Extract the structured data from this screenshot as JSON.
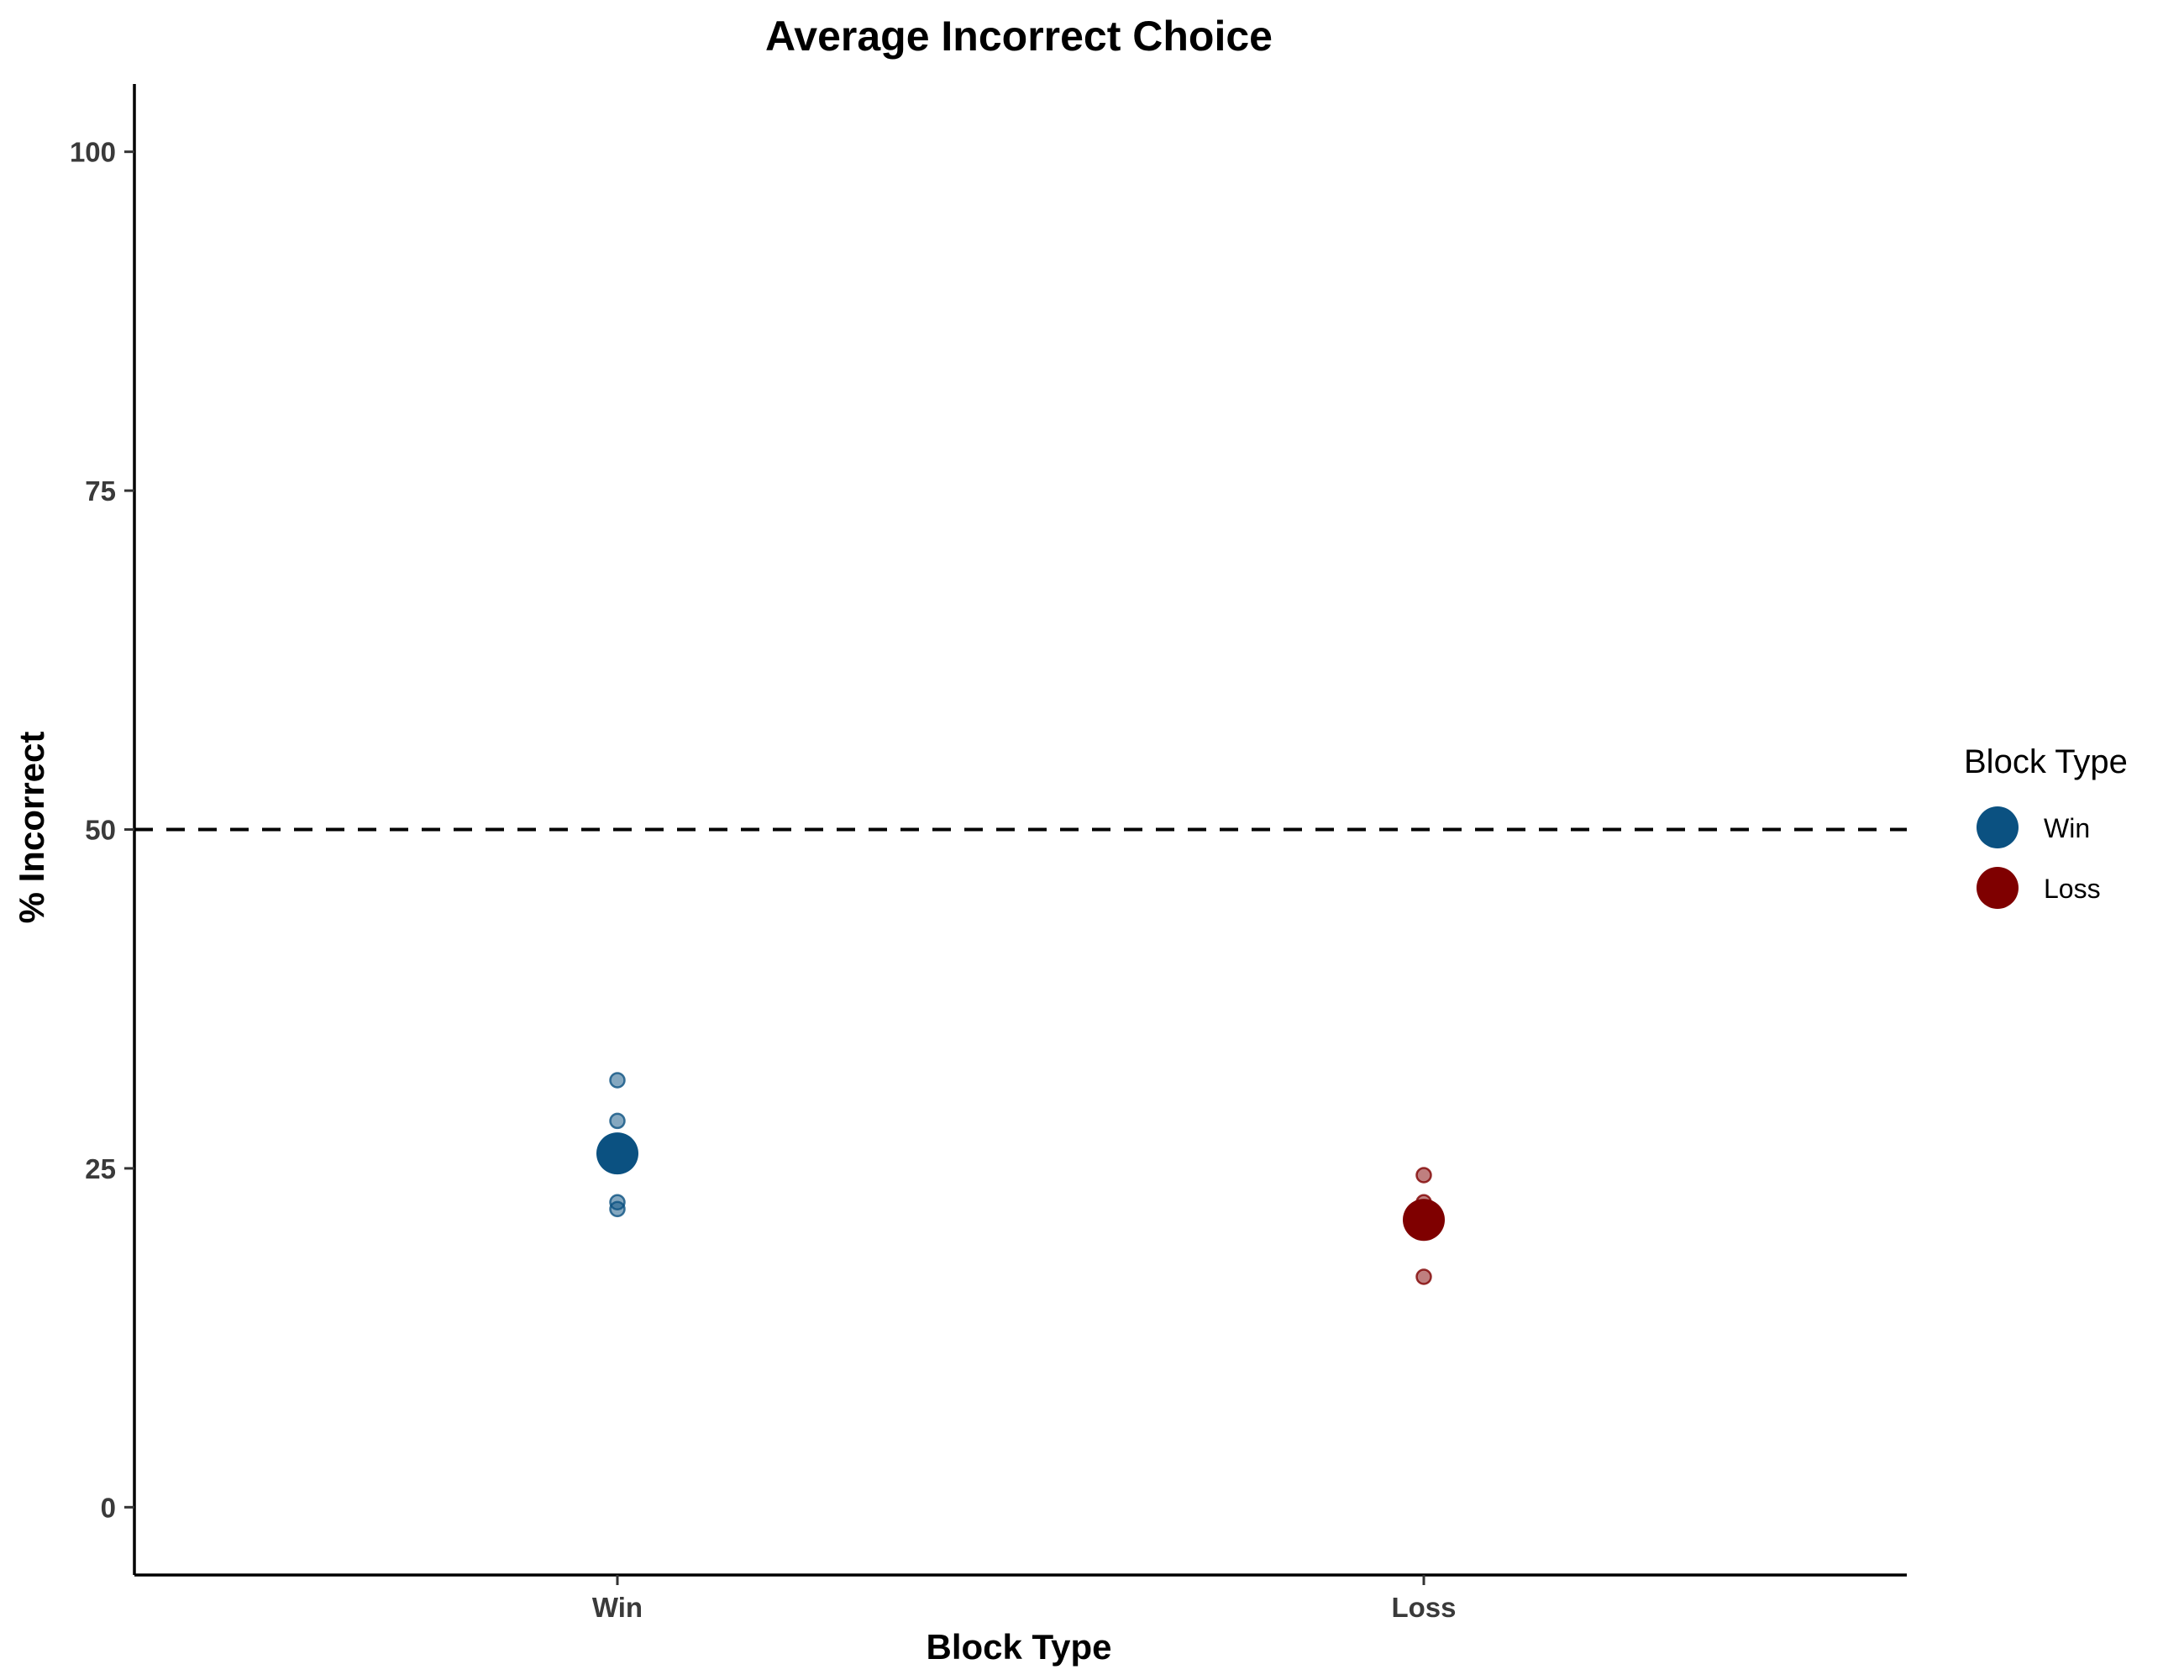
{
  "chart_data": {
    "type": "scatter",
    "title": "Average Incorrect Choice",
    "xlabel": "Block Type",
    "ylabel": "% Incorrect",
    "categories": [
      "Win",
      "Loss"
    ],
    "ylim": [
      -5,
      105
    ],
    "yticks": [
      0,
      25,
      50,
      75,
      100
    ],
    "reference_line": {
      "y": 50,
      "style": "dashed"
    },
    "grid": false,
    "legend": {
      "title": "Block Type",
      "position": "right"
    },
    "series": [
      {
        "name": "Win",
        "color": "#0b5181",
        "mean": 26.1,
        "points": [
          31.5,
          28.5,
          22.5,
          22.0
        ]
      },
      {
        "name": "Loss",
        "color": "#7f0000",
        "mean": 21.2,
        "points": [
          24.5,
          22.5,
          17.0
        ]
      }
    ]
  }
}
